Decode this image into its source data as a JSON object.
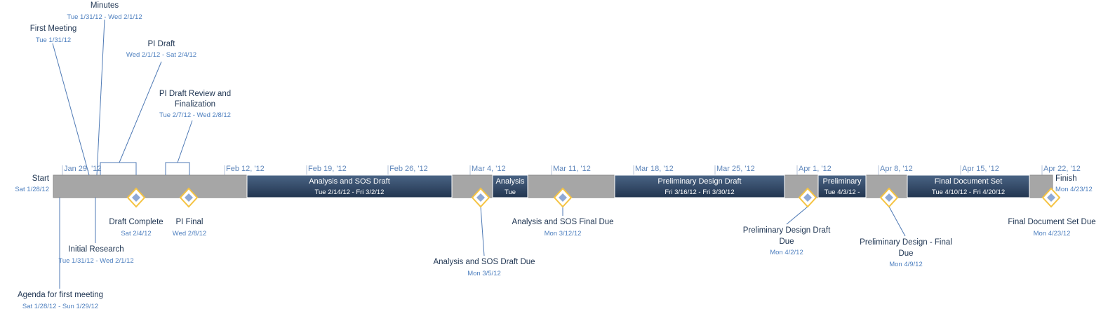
{
  "tick_labels": [
    "Jan 29, '12",
    "Feb 12, '12",
    "Feb 19, '12",
    "Feb 26, '12",
    "Mar 4, '12",
    "Mar 11, '12",
    "Mar 18, '12",
    "Mar 25, '12",
    "Apr 1, '12",
    "Apr 8, '12",
    "Apr 15, '12",
    "Apr 22, '12"
  ],
  "start": {
    "label": "Start",
    "date": "Sat 1/28/12"
  },
  "finish": {
    "label": "Finish",
    "date": "Mon 4/23/12"
  },
  "bars": [
    {
      "title": "Analysis and SOS Draft",
      "dates": "Tue 2/14/12 - Fri 3/2/12"
    },
    {
      "title": "Analysis",
      "dates": "Tue"
    },
    {
      "title": "Preliminary Design Draft",
      "dates": "Fri 3/16/12 - Fri 3/30/12"
    },
    {
      "title": "Preliminary",
      "dates": "Tue 4/3/12 -"
    },
    {
      "title": "Final Document Set",
      "dates": "Tue 4/10/12 - Fri 4/20/12"
    }
  ],
  "top_callouts": [
    {
      "title_lines": [
        "Minutes"
      ],
      "date": "Tue 1/31/12 - Wed 2/1/12"
    },
    {
      "title_lines": [
        "First Meeting"
      ],
      "date": "Tue 1/31/12"
    },
    {
      "title_lines": [
        "PI Draft"
      ],
      "date": "Wed 2/1/12 - Sat 2/4/12"
    },
    {
      "title_lines": [
        "PI Draft Review and",
        "Finalization"
      ],
      "date": "Tue 2/7/12 - Wed 2/8/12"
    }
  ],
  "bottom_callouts": [
    {
      "title_lines": [
        "Initial Research"
      ],
      "date": "Tue 1/31/12 - Wed 2/1/12"
    },
    {
      "title_lines": [
        "Agenda for first meeting"
      ],
      "date": "Sat 1/28/12 - Sun 1/29/12"
    }
  ],
  "milestones": [
    {
      "title_lines": [
        "Draft Complete"
      ],
      "date": "Sat 2/4/12"
    },
    {
      "title_lines": [
        "PI Final"
      ],
      "date": "Wed 2/8/12"
    },
    {
      "title_lines": [
        "Analysis and SOS Draft Due"
      ],
      "date": "Mon 3/5/12"
    },
    {
      "title_lines": [
        "Analysis and SOS Final Due"
      ],
      "date": "Mon 3/12/12"
    },
    {
      "title_lines": [
        "Preliminary Design Draft",
        "Due"
      ],
      "date": "Mon 4/2/12"
    },
    {
      "title_lines": [
        "Preliminary Design - Final",
        "Due"
      ],
      "date": "Mon 4/9/12"
    },
    {
      "title_lines": [
        "Final Document Set Due"
      ],
      "date": "Mon 4/23/12"
    }
  ],
  "colors": {
    "bar_background": "#a6a6a6",
    "task_bar_top": "#4a6485",
    "task_bar_bottom": "#22354f",
    "connector": "#4f7ab5",
    "diamond_fill": "#8fa9d6",
    "diamond_outline": "#f5c342",
    "title_text": "#1f3552",
    "date_text": "#4d7fbf"
  }
}
